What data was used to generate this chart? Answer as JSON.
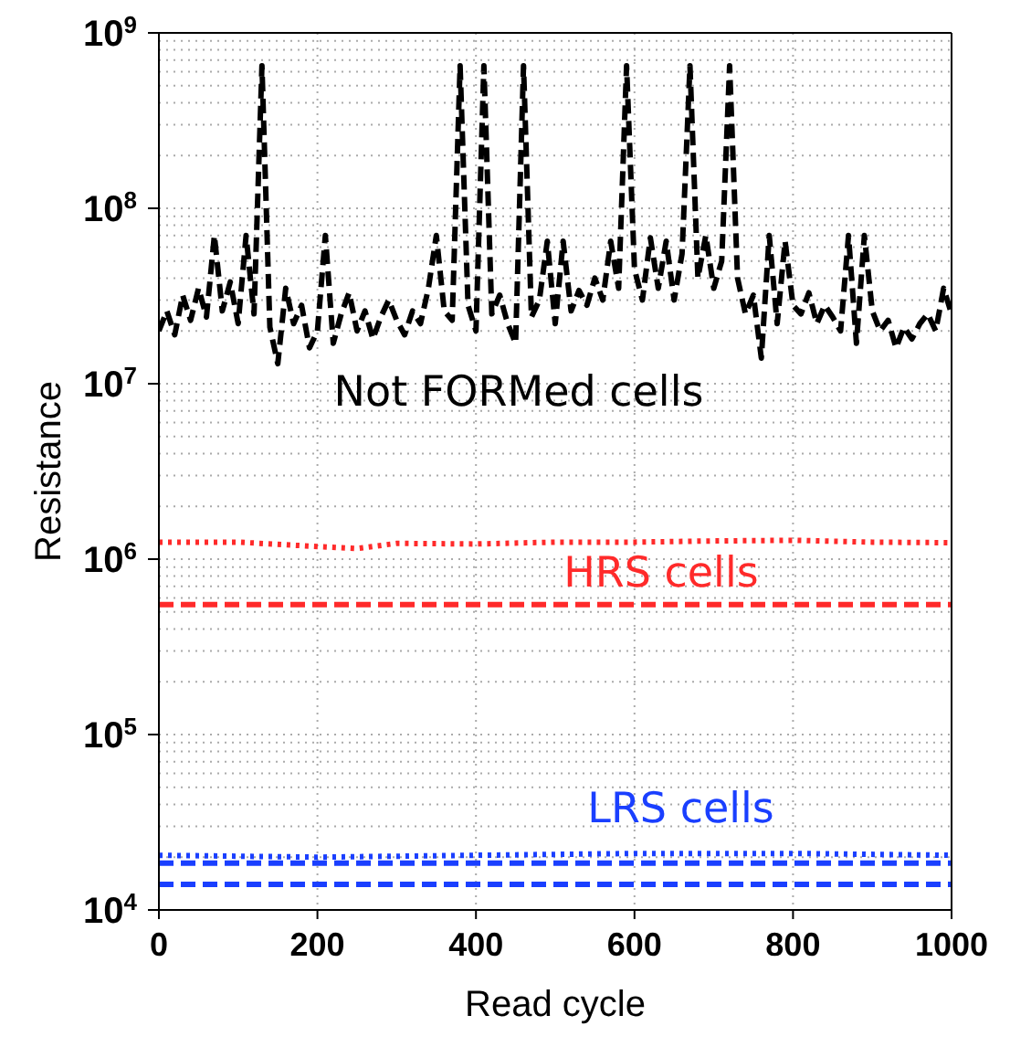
{
  "chart_data": {
    "type": "line",
    "xlabel": "Read cycle",
    "ylabel": "Resistance",
    "log": "y",
    "grid": true,
    "xlim": [
      0,
      1000
    ],
    "xticks": [
      0,
      200,
      400,
      600,
      800,
      1000
    ],
    "ylim": [
      10000,
      1000000000
    ],
    "yticks": [
      {
        "value": 10000,
        "label": "10$^{4}$"
      },
      {
        "value": 100000,
        "label": "10$^{5}$"
      },
      {
        "value": 1000000,
        "label": "10$^{6}$"
      },
      {
        "value": 10000000,
        "label": "10$^{7}$"
      },
      {
        "value": 100000000,
        "label": "10$^{8}$"
      },
      {
        "value": 1000000000,
        "label": "10$^{9}$"
      }
    ],
    "x": [
      0,
      10,
      20,
      30,
      40,
      50,
      60,
      70,
      80,
      90,
      100,
      110,
      120,
      130,
      140,
      150,
      160,
      170,
      180,
      190,
      200,
      210,
      220,
      230,
      240,
      250,
      260,
      270,
      280,
      290,
      300,
      310,
      320,
      330,
      340,
      350,
      360,
      370,
      380,
      390,
      400,
      410,
      420,
      430,
      440,
      450,
      460,
      470,
      480,
      490,
      500,
      510,
      520,
      530,
      540,
      550,
      560,
      570,
      580,
      590,
      600,
      610,
      620,
      630,
      640,
      650,
      660,
      670,
      680,
      690,
      700,
      710,
      720,
      730,
      740,
      750,
      760,
      770,
      780,
      790,
      800,
      810,
      820,
      830,
      840,
      850,
      860,
      870,
      880,
      890,
      900,
      910,
      920,
      930,
      940,
      950,
      960,
      970,
      980,
      990,
      1000
    ],
    "series": [
      {
        "color": "#000000",
        "line_style": "dashed",
        "values": [
          20000000,
          26000000,
          19000000,
          32000000,
          23000000,
          35000000,
          24000000,
          70000000,
          26000000,
          38000000,
          22000000,
          70000000,
          25000000,
          650000000,
          21000000,
          13000000,
          35000000,
          22000000,
          28000000,
          16000000,
          20000000,
          70000000,
          17000000,
          25000000,
          33000000,
          20000000,
          26000000,
          18000000,
          24000000,
          30000000,
          23000000,
          19000000,
          26000000,
          22000000,
          35000000,
          70000000,
          26000000,
          23000000,
          650000000,
          28000000,
          20000000,
          650000000,
          25000000,
          32000000,
          22000000,
          17000000,
          650000000,
          24000000,
          30000000,
          65000000,
          22000000,
          65000000,
          26000000,
          34000000,
          28000000,
          40000000,
          30000000,
          65000000,
          35000000,
          650000000,
          45000000,
          30000000,
          68000000,
          35000000,
          65000000,
          30000000,
          55000000,
          650000000,
          40000000,
          70000000,
          35000000,
          50000000,
          650000000,
          40000000,
          25000000,
          32000000,
          14000000,
          70000000,
          22000000,
          65000000,
          28000000,
          25000000,
          33000000,
          22000000,
          28000000,
          24000000,
          20000000,
          70000000,
          17000000,
          70000000,
          26000000,
          20000000,
          23000000,
          16000000,
          21000000,
          18000000,
          22000000,
          25000000,
          20000000,
          35000000,
          25000000
        ]
      },
      {
        "color": "#ff2a2a",
        "line_style": "dotted",
        "x": [
          0,
          100,
          200,
          250,
          300,
          400,
          500,
          600,
          700,
          800,
          900,
          1000
        ],
        "values": [
          1250000,
          1250000,
          1180000,
          1150000,
          1230000,
          1220000,
          1250000,
          1250000,
          1270000,
          1280000,
          1250000,
          1240000
        ]
      },
      {
        "color": "#ff2a2a",
        "line_style": "dashed",
        "x": [
          0,
          200,
          400,
          600,
          800,
          1000
        ],
        "values": [
          550000,
          550000,
          550000,
          550000,
          550000,
          550000
        ]
      },
      {
        "color": "#1a3fff",
        "line_style": "dotted",
        "x": [
          0,
          200,
          400,
          600,
          800,
          1000
        ],
        "values": [
          20500.0,
          20000,
          20500,
          21000,
          21000,
          20500
        ]
      },
      {
        "color": "#1a3fff",
        "line_style": "dashed",
        "x": [
          0,
          200,
          400,
          600,
          800,
          1000
        ],
        "values": [
          18500,
          18500,
          18500,
          18500,
          18500,
          18500
        ]
      },
      {
        "color": "#1a3fff",
        "line_style": "dashed",
        "x": [
          0,
          200,
          400,
          600,
          800,
          1000
        ],
        "values": [
          14000,
          14000,
          14000,
          14000,
          14000,
          14000
        ]
      }
    ],
    "annotations": [
      "Not FORMed cells",
      "HRS cells",
      "LRS cells"
    ]
  }
}
